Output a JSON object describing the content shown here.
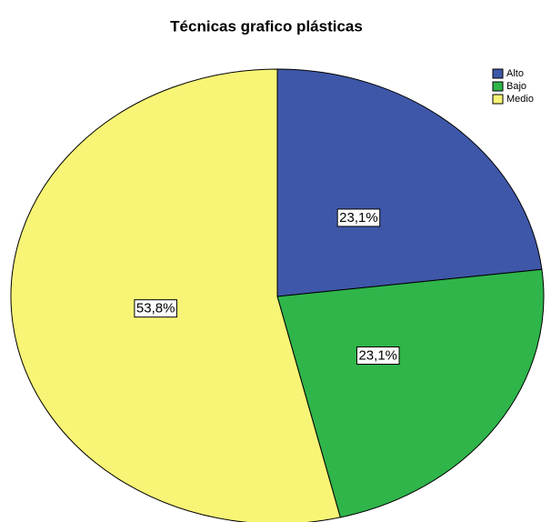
{
  "chart_data": {
    "type": "pie",
    "title": "Técnicas grafico plásticas",
    "categories": [
      "Alto",
      "Bajo",
      "Medio"
    ],
    "values": [
      23.1,
      23.1,
      53.8
    ],
    "value_labels": [
      "23,1%",
      "23,1%",
      "53,8%"
    ],
    "colors": [
      "#3f57a8",
      "#2fb54a",
      "#f8f576"
    ],
    "legend": "top-right"
  }
}
